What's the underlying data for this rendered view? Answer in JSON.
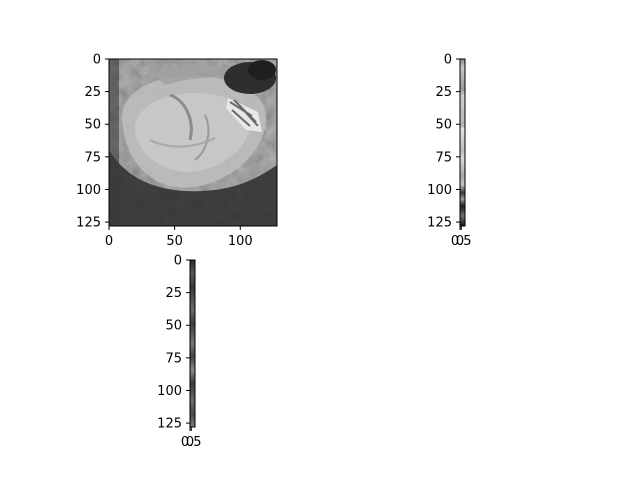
{
  "chart_data": [
    {
      "type": "heatmap",
      "title": "",
      "xlabel": "",
      "ylabel": "",
      "colormap": "gray",
      "image_shape": [
        128,
        128
      ],
      "xlim": [
        0,
        128
      ],
      "ylim": [
        128,
        0
      ],
      "xticks": [
        0,
        50,
        100
      ],
      "xtick_labels": [
        "0",
        "50",
        "100"
      ],
      "yticks": [
        0,
        25,
        50,
        75,
        100,
        125
      ],
      "ytick_labels": [
        "0",
        "25",
        "50",
        "75",
        "100",
        "125"
      ],
      "content": "grayscale image of a rounded, lens-shaped object with a bright textured band near the upper right"
    },
    {
      "type": "heatmap",
      "title": "",
      "xlabel": "",
      "ylabel": "",
      "colormap": "gray",
      "image_shape": [
        128,
        2
      ],
      "xlim": [
        0,
        2
      ],
      "ylim": [
        128,
        0
      ],
      "xticks": [
        0,
        0.5
      ],
      "xtick_labels": [
        "0",
        "0.5"
      ],
      "yticks": [
        0,
        25,
        50,
        75,
        100,
        125
      ],
      "ytick_labels": [
        "0",
        "25",
        "50",
        "75",
        "100",
        "125"
      ],
      "content": "narrow vertical grayscale strip, mostly light with dark segments near the bottom"
    },
    {
      "type": "heatmap",
      "title": "",
      "xlabel": "",
      "ylabel": "",
      "colormap": "gray",
      "image_shape": [
        128,
        2
      ],
      "xlim": [
        0,
        2
      ],
      "ylim": [
        128,
        0
      ],
      "xticks": [
        0,
        0.5
      ],
      "xtick_labels": [
        "0",
        "0.5"
      ],
      "yticks": [
        0,
        25,
        50,
        75,
        100,
        125
      ],
      "ytick_labels": [
        "0",
        "25",
        "50",
        "75",
        "100",
        "125"
      ],
      "content": "narrow vertical grayscale strip, dark and mottled throughout"
    }
  ]
}
